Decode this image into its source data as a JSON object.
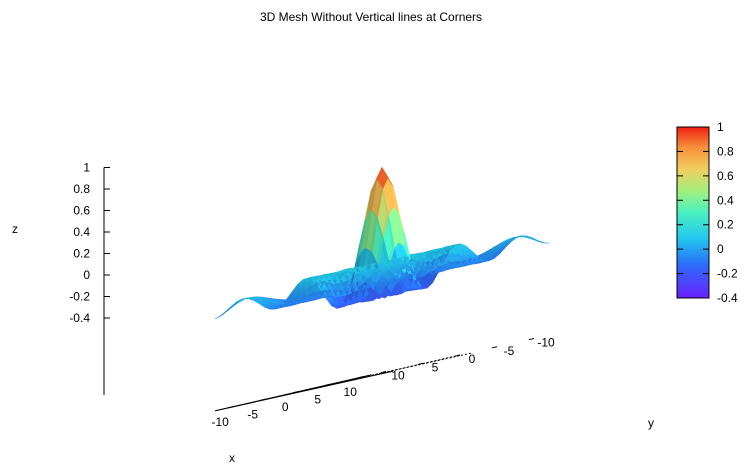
{
  "chart_data": {
    "type": "surface",
    "title": "3D Mesh Without Vertical lines at Corners",
    "xlabel": "x",
    "ylabel": "y",
    "zlabel": "z",
    "function": "sin(r)/r, r = sqrt(x^2 + y^2)",
    "xlim": [
      -12,
      12
    ],
    "ylim": [
      -12,
      12
    ],
    "zlim": [
      -0.4,
      1
    ],
    "x_ticks": [
      "-10",
      "-5",
      "0",
      "5",
      "10"
    ],
    "y_ticks": [
      "-10",
      "-5",
      "0",
      "5",
      "10"
    ],
    "z_ticks": [
      "-0.4",
      "-0.2",
      "0",
      "0.2",
      "0.4",
      "0.6",
      "0.8",
      "1"
    ],
    "colorbar_ticks": [
      "-0.4",
      "-0.2",
      "0",
      "0.2",
      "0.4",
      "0.6",
      "0.8",
      "1"
    ],
    "colorbar_range": [
      -0.4,
      1
    ],
    "colormap": "rainbow",
    "grid_lines": "x=0 and y=0 on base plane",
    "colors": {
      "low": "#6a2cf5",
      "mid": "#3ad0f0",
      "high": "#f03010"
    }
  }
}
